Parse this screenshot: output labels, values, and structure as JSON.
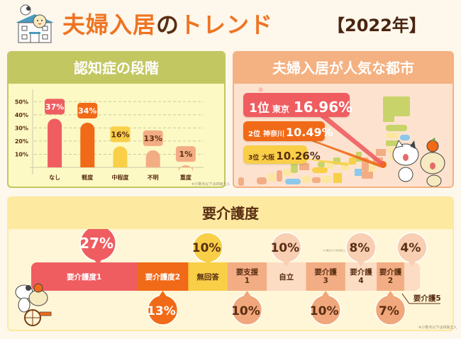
{
  "header": {
    "title_part1": "夫婦入居",
    "title_part2": "の",
    "title_part3": "トレンド",
    "year": "【2022年】"
  },
  "colors": {
    "red": "#ef5d61",
    "orange": "#f16a17",
    "yellow": "#f8cf47",
    "salmon": "#f3ad84",
    "light_salmon": "#f8c9a8",
    "pale": "#fcdcc3",
    "olive": "#c3c761",
    "text_brown": "#5a2e12"
  },
  "chart_data": [
    {
      "type": "bar",
      "title": "認知症の段階",
      "categories": [
        "なし",
        "軽度",
        "中程度",
        "不明",
        "重度"
      ],
      "values": [
        37,
        34,
        16,
        13,
        1
      ],
      "value_labels": [
        "37%",
        "34%",
        "16%",
        "13%",
        "1%"
      ],
      "colors": [
        "#ef5d61",
        "#f16a17",
        "#f8cf47",
        "#f3ad84",
        "#f3ad84"
      ],
      "yticks": [
        "10%",
        "20%",
        "30%",
        "40%",
        "50%"
      ],
      "ylim": [
        0,
        55
      ],
      "grid": true,
      "note": "※小数点以下は四捨五入"
    },
    {
      "type": "table",
      "title": "夫婦入居が人気な都市",
      "rows": [
        {
          "rank": "1位",
          "city": "東京",
          "percent": "16.96%",
          "value": 16.96
        },
        {
          "rank": "2位",
          "city": "神奈川",
          "percent": "10.49%",
          "value": 10.49
        },
        {
          "rank": "3位",
          "city": "大阪",
          "percent": "10.26%",
          "value": 10.26
        }
      ]
    },
    {
      "type": "bar",
      "orientation": "horizontal-stacked",
      "title": "要介護度",
      "segments": [
        {
          "label": "要介護度1",
          "value": 27,
          "pct": "27%",
          "color": "#ef5d61",
          "text_color": "#ffffff",
          "bubble": "above"
        },
        {
          "label": "要介護度2",
          "value": 13,
          "pct": "13%",
          "color": "#f16a17",
          "text_color": "#ffffff",
          "bubble": "below"
        },
        {
          "label": "無回答",
          "value": 10,
          "pct": "10%",
          "color": "#f8cf47",
          "text_color": "#5a2e12",
          "bubble": "above"
        },
        {
          "label": "要支援\n1",
          "value": 10,
          "pct": "10%",
          "color": "#f3ad84",
          "text_color": "#5a2e12",
          "bubble": "below"
        },
        {
          "label": "自立",
          "value": 10,
          "pct": "10%",
          "color": "#fcdcc3",
          "text_color": "#5a2e12",
          "bubble": "above"
        },
        {
          "label": "要介護\n3",
          "value": 10,
          "pct": "10%",
          "color": "#f3ad84",
          "text_color": "#5a2e12",
          "bubble": "below"
        },
        {
          "label": "要介護\n4",
          "value": 8,
          "pct": "8%",
          "color": "#fcdcc3",
          "text_color": "#5a2e12",
          "bubble": "above"
        },
        {
          "label": "要介護\n2",
          "value": 7,
          "pct": "7%",
          "color": "#f3ad84",
          "text_color": "#5a2e12",
          "bubble": "below"
        },
        {
          "label": "要介護5",
          "value": 4,
          "pct": "4%",
          "color": "#fcdcc3",
          "text_color": "#5a2e12",
          "bubble": "above",
          "external_label": true
        }
      ],
      "note": "※小数点以下は四捨五入"
    }
  ]
}
